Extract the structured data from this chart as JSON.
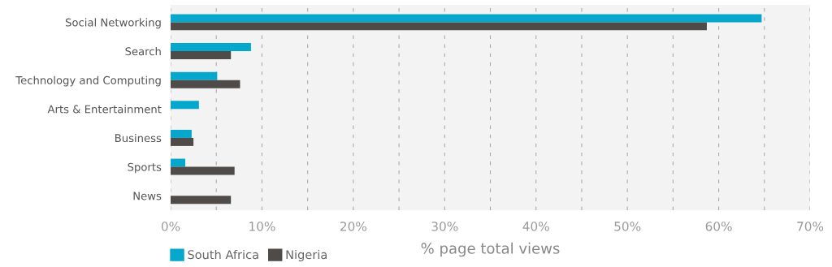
{
  "chart_data": {
    "type": "bar",
    "orientation": "horizontal",
    "xlabel": "% page total views",
    "categories": [
      "Social Networking",
      "Search",
      "Technology and Computing",
      "Arts & Entertainment",
      "Business",
      "Sports",
      "News"
    ],
    "series": [
      {
        "name": "South Africa",
        "color": "#06a7cc",
        "values": [
          64.7,
          8.8,
          5.1,
          3.1,
          2.3,
          1.6,
          null
        ]
      },
      {
        "name": "Nigeria",
        "color": "#4f4b48",
        "values": [
          58.7,
          6.6,
          7.6,
          null,
          2.5,
          7.0,
          6.6
        ]
      }
    ],
    "xlim": [
      0,
      70
    ],
    "xticks": [
      {
        "value": 0,
        "label": "0%"
      },
      {
        "value": 5,
        "label": null
      },
      {
        "value": 10,
        "label": "10%"
      },
      {
        "value": 15,
        "label": null
      },
      {
        "value": 20,
        "label": "20%"
      },
      {
        "value": 25,
        "label": null
      },
      {
        "value": 30,
        "label": "30%"
      },
      {
        "value": 35,
        "label": null
      },
      {
        "value": 40,
        "label": "40%"
      },
      {
        "value": 45,
        "label": null
      },
      {
        "value": 50,
        "label": "50%"
      },
      {
        "value": 55,
        "label": null
      },
      {
        "value": 60,
        "label": "60%"
      },
      {
        "value": 65,
        "label": null
      },
      {
        "value": 70,
        "label": "70%"
      }
    ],
    "grid": "x",
    "legend": "bottom left"
  }
}
